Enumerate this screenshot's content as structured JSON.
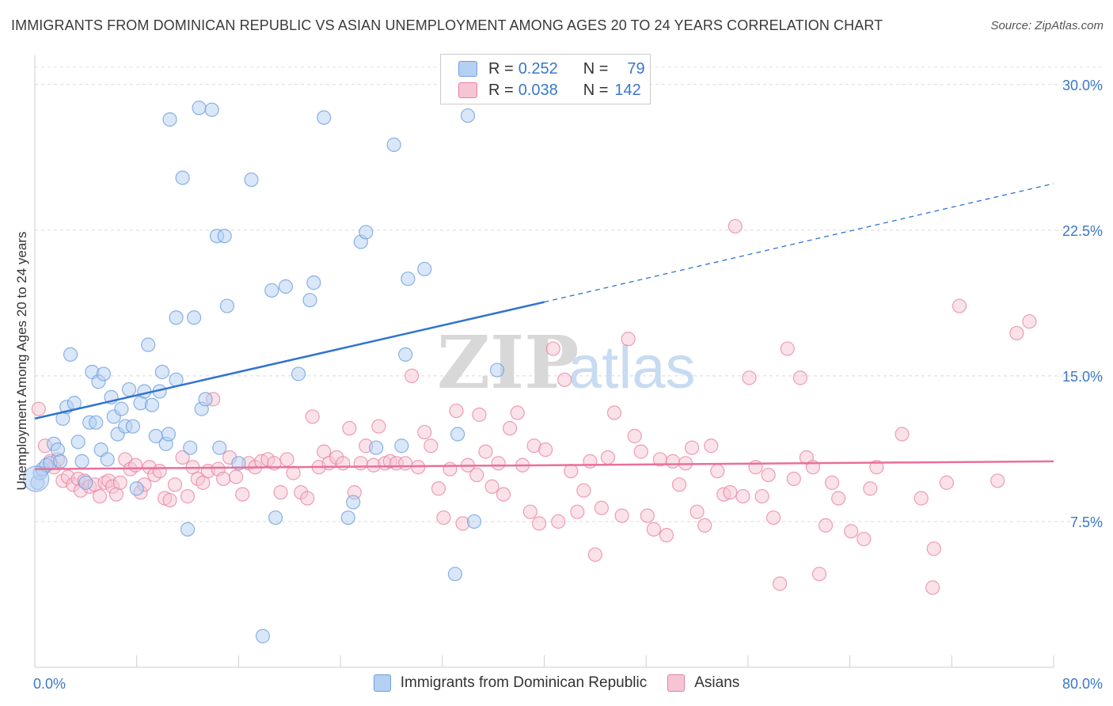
{
  "title": "IMMIGRANTS FROM DOMINICAN REPUBLIC VS ASIAN UNEMPLOYMENT AMONG AGES 20 TO 24 YEARS CORRELATION CHART",
  "source": "Source: ZipAtlas.com",
  "watermark": {
    "zip": "ZIP",
    "atlas": "atlas"
  },
  "legend_stats": [
    {
      "r_label": "R =",
      "r_value": "0.252",
      "n_label": "N =",
      "n_value": "79"
    },
    {
      "r_label": "R =",
      "r_value": "0.038",
      "n_label": "N =",
      "n_value": "142"
    }
  ],
  "chart_data": {
    "type": "scatter",
    "title": "IMMIGRANTS FROM DOMINICAN REPUBLIC VS ASIAN UNEMPLOYMENT AMONG AGES 20 TO 24 YEARS CORRELATION CHART",
    "xlabel": "",
    "ylabel": "Unemployment Among Ages 20 to 24 years",
    "xlim": [
      0,
      80
    ],
    "ylim": [
      0,
      31.5
    ],
    "x_tick_labels": [
      "0.0%",
      "80.0%"
    ],
    "y_ticks": [
      7.5,
      15.0,
      22.5,
      30.0
    ],
    "y_tick_labels": [
      "7.5%",
      "15.0%",
      "22.5%",
      "30.0%"
    ],
    "grid": true,
    "legend_position": "top-center",
    "colors": {
      "blue": "#6fa0e0",
      "blue_fill": "#b4d0f2",
      "blue_line": "#2f74d0",
      "pink": "#ea7fa0",
      "pink_fill": "#f6c5d4",
      "pink_line": "#e8709a"
    },
    "series": [
      {
        "name": "Immigrants from Dominican Republic",
        "color": "#6fa0e0",
        "trend": {
          "x0": 0,
          "y0": 12.8,
          "x1": 40,
          "y1": 18.8,
          "dashed_to_x": 80,
          "dashed_to_y": 24.9
        },
        "points": [
          [
            0.2,
            9.5
          ],
          [
            0.4,
            10.0
          ],
          [
            0.6,
            10.2
          ],
          [
            0.9,
            10.4
          ],
          [
            1.2,
            10.5
          ],
          [
            1.5,
            11.5
          ],
          [
            1.8,
            11.2
          ],
          [
            2.0,
            10.6
          ],
          [
            2.2,
            12.8
          ],
          [
            2.5,
            13.4
          ],
          [
            2.8,
            16.1
          ],
          [
            3.1,
            13.6
          ],
          [
            3.4,
            11.6
          ],
          [
            3.7,
            10.6
          ],
          [
            4.0,
            9.5
          ],
          [
            4.3,
            12.6
          ],
          [
            4.5,
            15.2
          ],
          [
            4.8,
            12.6
          ],
          [
            5.0,
            14.7
          ],
          [
            5.2,
            11.2
          ],
          [
            5.4,
            15.1
          ],
          [
            5.7,
            10.7
          ],
          [
            6.0,
            13.9
          ],
          [
            6.2,
            12.9
          ],
          [
            6.5,
            12.0
          ],
          [
            6.8,
            13.3
          ],
          [
            7.1,
            12.4
          ],
          [
            7.4,
            14.3
          ],
          [
            7.7,
            12.4
          ],
          [
            8.0,
            9.2
          ],
          [
            8.3,
            13.6
          ],
          [
            8.6,
            14.2
          ],
          [
            8.9,
            16.6
          ],
          [
            9.2,
            13.5
          ],
          [
            9.5,
            11.9
          ],
          [
            9.8,
            14.2
          ],
          [
            10.0,
            15.2
          ],
          [
            10.3,
            11.5
          ],
          [
            10.5,
            12.0
          ],
          [
            10.6,
            28.2
          ],
          [
            11.1,
            14.8
          ],
          [
            11.1,
            18.0
          ],
          [
            11.6,
            25.2
          ],
          [
            12.0,
            7.1
          ],
          [
            12.2,
            11.3
          ],
          [
            12.5,
            18.0
          ],
          [
            12.9,
            28.8
          ],
          [
            13.1,
            13.3
          ],
          [
            13.4,
            13.8
          ],
          [
            13.9,
            28.7
          ],
          [
            14.3,
            22.2
          ],
          [
            14.5,
            11.3
          ],
          [
            14.9,
            22.2
          ],
          [
            15.1,
            18.6
          ],
          [
            16.0,
            10.5
          ],
          [
            17.0,
            25.1
          ],
          [
            17.9,
            1.6
          ],
          [
            18.6,
            19.4
          ],
          [
            18.9,
            7.7
          ],
          [
            19.7,
            19.6
          ],
          [
            20.7,
            15.1
          ],
          [
            21.6,
            18.9
          ],
          [
            21.9,
            19.8
          ],
          [
            22.7,
            28.3
          ],
          [
            24.6,
            7.7
          ],
          [
            25.0,
            8.5
          ],
          [
            25.6,
            21.9
          ],
          [
            26.0,
            22.4
          ],
          [
            26.8,
            11.3
          ],
          [
            28.2,
            26.9
          ],
          [
            28.8,
            11.4
          ],
          [
            29.1,
            16.1
          ],
          [
            29.3,
            20.0
          ],
          [
            30.6,
            20.5
          ],
          [
            33.0,
            4.8
          ],
          [
            33.2,
            12.0
          ],
          [
            34.0,
            28.4
          ],
          [
            34.5,
            7.5
          ],
          [
            36.3,
            15.3
          ]
        ]
      },
      {
        "name": "Asians",
        "color": "#ea7fa0",
        "trend": {
          "x0": 0,
          "y0": 10.2,
          "x1": 80,
          "y1": 10.6
        },
        "points": [
          [
            0.3,
            13.3
          ],
          [
            0.8,
            11.4
          ],
          [
            1.2,
            10.6
          ],
          [
            1.5,
            10.3
          ],
          [
            1.8,
            10.7
          ],
          [
            2.2,
            9.6
          ],
          [
            2.6,
            9.8
          ],
          [
            3.0,
            9.4
          ],
          [
            3.4,
            9.7
          ],
          [
            3.6,
            9.1
          ],
          [
            3.9,
            9.6
          ],
          [
            4.3,
            9.3
          ],
          [
            4.7,
            9.4
          ],
          [
            5.1,
            8.8
          ],
          [
            5.5,
            9.5
          ],
          [
            5.8,
            9.6
          ],
          [
            6.1,
            9.3
          ],
          [
            6.4,
            8.9
          ],
          [
            6.7,
            9.5
          ],
          [
            7.1,
            10.7
          ],
          [
            7.5,
            10.2
          ],
          [
            7.9,
            10.4
          ],
          [
            8.3,
            9.0
          ],
          [
            8.6,
            9.4
          ],
          [
            9.0,
            10.3
          ],
          [
            9.4,
            9.9
          ],
          [
            9.8,
            10.1
          ],
          [
            10.2,
            8.7
          ],
          [
            10.6,
            8.6
          ],
          [
            11.0,
            9.4
          ],
          [
            11.6,
            10.8
          ],
          [
            12.0,
            8.8
          ],
          [
            12.4,
            10.3
          ],
          [
            12.8,
            9.7
          ],
          [
            13.2,
            9.5
          ],
          [
            13.6,
            10.1
          ],
          [
            14.0,
            13.8
          ],
          [
            14.4,
            10.2
          ],
          [
            14.8,
            9.7
          ],
          [
            15.3,
            10.8
          ],
          [
            15.8,
            9.8
          ],
          [
            16.3,
            8.9
          ],
          [
            16.8,
            10.5
          ],
          [
            17.3,
            10.3
          ],
          [
            17.8,
            10.6
          ],
          [
            18.3,
            10.7
          ],
          [
            18.8,
            10.5
          ],
          [
            19.3,
            9.0
          ],
          [
            19.8,
            10.7
          ],
          [
            20.3,
            10.0
          ],
          [
            20.9,
            9.0
          ],
          [
            21.4,
            8.7
          ],
          [
            21.8,
            12.9
          ],
          [
            22.3,
            10.3
          ],
          [
            22.7,
            11.1
          ],
          [
            23.1,
            10.5
          ],
          [
            23.7,
            10.8
          ],
          [
            24.2,
            10.5
          ],
          [
            24.7,
            12.3
          ],
          [
            25.1,
            9.0
          ],
          [
            25.6,
            10.5
          ],
          [
            26.0,
            11.4
          ],
          [
            26.6,
            10.4
          ],
          [
            27.0,
            12.4
          ],
          [
            27.5,
            10.5
          ],
          [
            27.9,
            10.6
          ],
          [
            28.4,
            10.5
          ],
          [
            29.1,
            10.5
          ],
          [
            29.6,
            15.0
          ],
          [
            30.1,
            10.3
          ],
          [
            30.6,
            12.1
          ],
          [
            31.1,
            11.4
          ],
          [
            31.7,
            9.2
          ],
          [
            32.1,
            7.7
          ],
          [
            32.6,
            10.2
          ],
          [
            33.1,
            13.2
          ],
          [
            33.6,
            7.4
          ],
          [
            34.0,
            10.4
          ],
          [
            34.7,
            9.9
          ],
          [
            34.9,
            13.0
          ],
          [
            35.4,
            11.1
          ],
          [
            35.9,
            9.3
          ],
          [
            36.4,
            10.5
          ],
          [
            36.8,
            8.9
          ],
          [
            37.3,
            12.3
          ],
          [
            37.9,
            13.1
          ],
          [
            38.3,
            10.4
          ],
          [
            38.9,
            8.0
          ],
          [
            39.2,
            11.4
          ],
          [
            39.6,
            7.4
          ],
          [
            40.1,
            11.2
          ],
          [
            40.7,
            16.4
          ],
          [
            41.1,
            7.5
          ],
          [
            41.6,
            14.8
          ],
          [
            42.1,
            10.1
          ],
          [
            42.6,
            8.0
          ],
          [
            43.1,
            9.1
          ],
          [
            43.6,
            10.6
          ],
          [
            44.0,
            5.8
          ],
          [
            44.5,
            8.2
          ],
          [
            45.0,
            10.8
          ],
          [
            45.5,
            13.1
          ],
          [
            46.1,
            7.8
          ],
          [
            46.6,
            16.9
          ],
          [
            47.1,
            11.9
          ],
          [
            47.6,
            11.1
          ],
          [
            48.1,
            7.8
          ],
          [
            48.6,
            7.1
          ],
          [
            49.1,
            10.7
          ],
          [
            49.6,
            6.8
          ],
          [
            50.1,
            10.6
          ],
          [
            50.6,
            9.4
          ],
          [
            51.1,
            10.5
          ],
          [
            51.6,
            11.3
          ],
          [
            52.0,
            8.0
          ],
          [
            52.6,
            7.3
          ],
          [
            53.1,
            11.4
          ],
          [
            53.6,
            10.1
          ],
          [
            54.1,
            8.9
          ],
          [
            54.6,
            9.0
          ],
          [
            55.0,
            22.7
          ],
          [
            55.6,
            8.8
          ],
          [
            56.1,
            14.9
          ],
          [
            56.6,
            10.3
          ],
          [
            57.1,
            8.8
          ],
          [
            57.6,
            9.9
          ],
          [
            58.0,
            7.7
          ],
          [
            58.5,
            4.3
          ],
          [
            59.1,
            16.4
          ],
          [
            59.6,
            9.7
          ],
          [
            60.1,
            14.9
          ],
          [
            60.6,
            10.8
          ],
          [
            61.1,
            10.3
          ],
          [
            61.6,
            4.8
          ],
          [
            62.1,
            7.3
          ],
          [
            62.6,
            9.5
          ],
          [
            63.1,
            8.7
          ],
          [
            64.1,
            7.0
          ],
          [
            65.1,
            6.6
          ],
          [
            66.1,
            10.3
          ],
          [
            65.6,
            9.2
          ],
          [
            68.1,
            12.0
          ],
          [
            69.6,
            8.7
          ],
          [
            70.6,
            6.1
          ],
          [
            70.5,
            4.1
          ],
          [
            71.6,
            9.5
          ],
          [
            72.6,
            18.6
          ],
          [
            75.6,
            9.6
          ],
          [
            77.1,
            17.2
          ],
          [
            78.1,
            17.8
          ]
        ]
      }
    ]
  },
  "bottom_legend": [
    {
      "label": "Immigrants from Dominican Republic",
      "color": "#b4d0f2"
    },
    {
      "label": "Asians",
      "color": "#f6c5d4"
    }
  ]
}
